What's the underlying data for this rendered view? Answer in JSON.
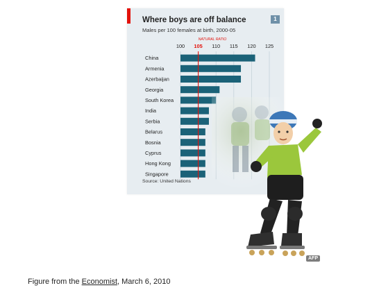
{
  "chart_data": {
    "type": "bar",
    "orientation": "horizontal",
    "title": "Where boys are off balance",
    "subtitle": "Males per 100 females at birth, 2000-05",
    "chart_number": "1",
    "reference_line": {
      "label": "NATURAL RATIO",
      "value": 105,
      "color": "#e3120b"
    },
    "xlim": [
      100,
      125
    ],
    "xticks": [
      100,
      105,
      110,
      115,
      120,
      125
    ],
    "grid": true,
    "categories": [
      "China",
      "Armenia",
      "Azerbaijan",
      "Georgia",
      "South Korea",
      "India",
      "Serbia",
      "Belarus",
      "Bosnia",
      "Cyprus",
      "Hong Kong",
      "Singapore"
    ],
    "values": [
      121,
      117,
      117,
      111,
      110,
      108,
      108,
      107,
      107,
      107,
      107,
      107
    ],
    "bar_color": "#1b6278",
    "source": "Source: United Nations"
  },
  "photo": {
    "icon": "child-inline-skater-photo",
    "credit": "AFP"
  },
  "caption": {
    "prefix": "Figure from the ",
    "publication": "Economist",
    "suffix": ", March 6, 2010"
  }
}
